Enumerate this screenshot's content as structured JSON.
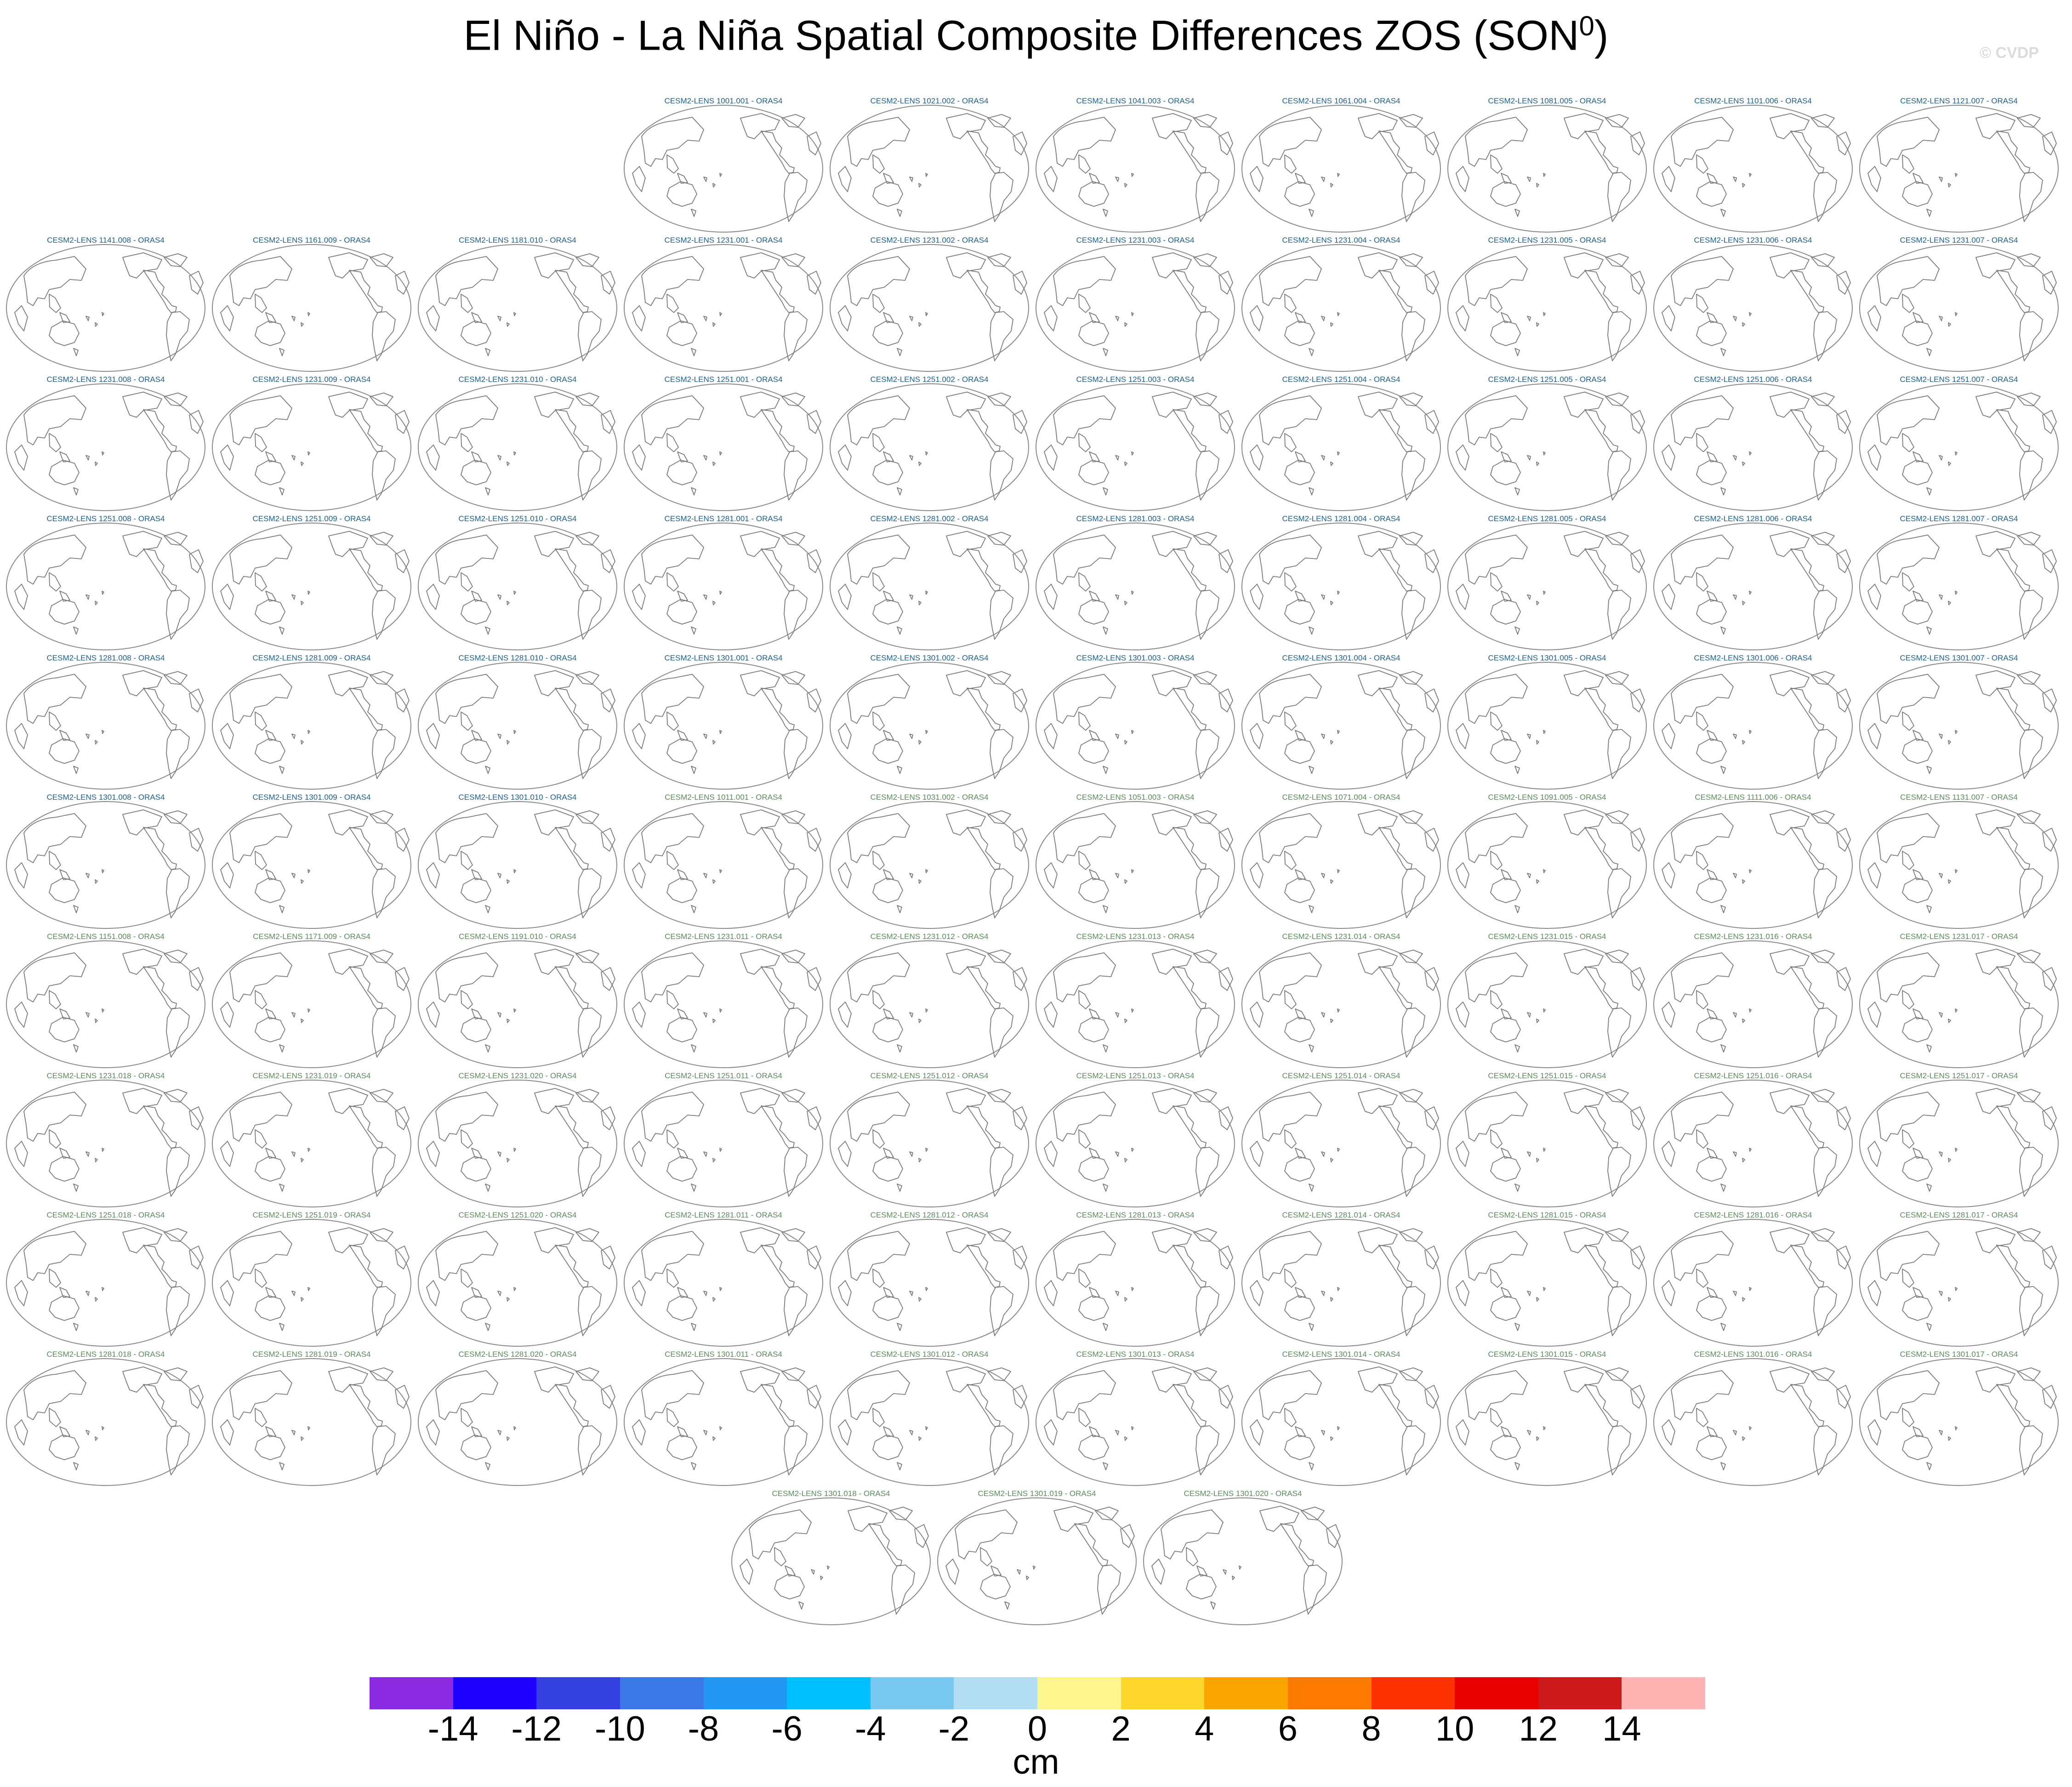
{
  "title": {
    "main": "El Niño - La Niña Spatial Composite Differences ZOS (SON",
    "superscript": "0",
    "closing": ")"
  },
  "watermark": "© CVDP",
  "panel_colors": {
    "group_a": "#1f5f8a",
    "group_b": "#5d8a5d"
  },
  "panel_rows": [
    {
      "panels": [
        {
          "label": "CESM2-LENS 1001.001 - ORAS4",
          "group": "a"
        },
        {
          "label": "CESM2-LENS 1021.002 - ORAS4",
          "group": "a"
        },
        {
          "label": "CESM2-LENS 1041.003 - ORAS4",
          "group": "a"
        },
        {
          "label": "CESM2-LENS 1061.004 - ORAS4",
          "group": "a"
        },
        {
          "label": "CESM2-LENS 1081.005 - ORAS4",
          "group": "a"
        },
        {
          "label": "CESM2-LENS 1101.006 - ORAS4",
          "group": "a"
        },
        {
          "label": "CESM2-LENS 1121.007 - ORAS4",
          "group": "a"
        }
      ]
    },
    {
      "panels": [
        {
          "label": "CESM2-LENS 1141.008 - ORAS4",
          "group": "a"
        },
        {
          "label": "CESM2-LENS 1161.009 - ORAS4",
          "group": "a"
        },
        {
          "label": "CESM2-LENS 1181.010 - ORAS4",
          "group": "a"
        },
        {
          "label": "CESM2-LENS 1231.001 - ORAS4",
          "group": "a"
        },
        {
          "label": "CESM2-LENS 1231.002 - ORAS4",
          "group": "a"
        },
        {
          "label": "CESM2-LENS 1231.003 - ORAS4",
          "group": "a"
        },
        {
          "label": "CESM2-LENS 1231.004 - ORAS4",
          "group": "a"
        },
        {
          "label": "CESM2-LENS 1231.005 - ORAS4",
          "group": "a"
        },
        {
          "label": "CESM2-LENS 1231.006 - ORAS4",
          "group": "a"
        },
        {
          "label": "CESM2-LENS 1231.007 - ORAS4",
          "group": "a"
        }
      ]
    },
    {
      "panels": [
        {
          "label": "CESM2-LENS 1231.008 - ORAS4",
          "group": "a"
        },
        {
          "label": "CESM2-LENS 1231.009 - ORAS4",
          "group": "a"
        },
        {
          "label": "CESM2-LENS 1231.010 - ORAS4",
          "group": "a"
        },
        {
          "label": "CESM2-LENS 1251.001 - ORAS4",
          "group": "a"
        },
        {
          "label": "CESM2-LENS 1251.002 - ORAS4",
          "group": "a"
        },
        {
          "label": "CESM2-LENS 1251.003 - ORAS4",
          "group": "a"
        },
        {
          "label": "CESM2-LENS 1251.004 - ORAS4",
          "group": "a"
        },
        {
          "label": "CESM2-LENS 1251.005 - ORAS4",
          "group": "a"
        },
        {
          "label": "CESM2-LENS 1251.006 - ORAS4",
          "group": "a"
        },
        {
          "label": "CESM2-LENS 1251.007 - ORAS4",
          "group": "a"
        }
      ]
    },
    {
      "panels": [
        {
          "label": "CESM2-LENS 1251.008 - ORAS4",
          "group": "a"
        },
        {
          "label": "CESM2-LENS 1251.009 - ORAS4",
          "group": "a"
        },
        {
          "label": "CESM2-LENS 1251.010 - ORAS4",
          "group": "a"
        },
        {
          "label": "CESM2-LENS 1281.001 - ORAS4",
          "group": "a"
        },
        {
          "label": "CESM2-LENS 1281.002 - ORAS4",
          "group": "a"
        },
        {
          "label": "CESM2-LENS 1281.003 - ORAS4",
          "group": "a"
        },
        {
          "label": "CESM2-LENS 1281.004 - ORAS4",
          "group": "a"
        },
        {
          "label": "CESM2-LENS 1281.005 - ORAS4",
          "group": "a"
        },
        {
          "label": "CESM2-LENS 1281.006 - ORAS4",
          "group": "a"
        },
        {
          "label": "CESM2-LENS 1281.007 - ORAS4",
          "group": "a"
        }
      ]
    },
    {
      "panels": [
        {
          "label": "CESM2-LENS 1281.008 - ORAS4",
          "group": "a"
        },
        {
          "label": "CESM2-LENS 1281.009 - ORAS4",
          "group": "a"
        },
        {
          "label": "CESM2-LENS 1281.010 - ORAS4",
          "group": "a"
        },
        {
          "label": "CESM2-LENS 1301.001 - ORAS4",
          "group": "a"
        },
        {
          "label": "CESM2-LENS 1301.002 - ORAS4",
          "group": "a"
        },
        {
          "label": "CESM2-LENS 1301.003 - ORAS4",
          "group": "a"
        },
        {
          "label": "CESM2-LENS 1301.004 - ORAS4",
          "group": "a"
        },
        {
          "label": "CESM2-LENS 1301.005 - ORAS4",
          "group": "a"
        },
        {
          "label": "CESM2-LENS 1301.006 - ORAS4",
          "group": "a"
        },
        {
          "label": "CESM2-LENS 1301.007 - ORAS4",
          "group": "a"
        }
      ]
    },
    {
      "panels": [
        {
          "label": "CESM2-LENS 1301.008 - ORAS4",
          "group": "a"
        },
        {
          "label": "CESM2-LENS 1301.009 - ORAS4",
          "group": "a"
        },
        {
          "label": "CESM2-LENS 1301.010 - ORAS4",
          "group": "a"
        },
        {
          "label": "CESM2-LENS 1011.001 - ORAS4",
          "group": "b"
        },
        {
          "label": "CESM2-LENS 1031.002 - ORAS4",
          "group": "b"
        },
        {
          "label": "CESM2-LENS 1051.003 - ORAS4",
          "group": "b"
        },
        {
          "label": "CESM2-LENS 1071.004 - ORAS4",
          "group": "b"
        },
        {
          "label": "CESM2-LENS 1091.005 - ORAS4",
          "group": "b"
        },
        {
          "label": "CESM2-LENS 1111.006 - ORAS4",
          "group": "b"
        },
        {
          "label": "CESM2-LENS 1131.007 - ORAS4",
          "group": "b"
        }
      ]
    },
    {
      "panels": [
        {
          "label": "CESM2-LENS 1151.008 - ORAS4",
          "group": "b"
        },
        {
          "label": "CESM2-LENS 1171.009 - ORAS4",
          "group": "b"
        },
        {
          "label": "CESM2-LENS 1191.010 - ORAS4",
          "group": "b"
        },
        {
          "label": "CESM2-LENS 1231.011 - ORAS4",
          "group": "b"
        },
        {
          "label": "CESM2-LENS 1231.012 - ORAS4",
          "group": "b"
        },
        {
          "label": "CESM2-LENS 1231.013 - ORAS4",
          "group": "b"
        },
        {
          "label": "CESM2-LENS 1231.014 - ORAS4",
          "group": "b"
        },
        {
          "label": "CESM2-LENS 1231.015 - ORAS4",
          "group": "b"
        },
        {
          "label": "CESM2-LENS 1231.016 - ORAS4",
          "group": "b"
        },
        {
          "label": "CESM2-LENS 1231.017 - ORAS4",
          "group": "b"
        }
      ]
    },
    {
      "panels": [
        {
          "label": "CESM2-LENS 1231.018 - ORAS4",
          "group": "b"
        },
        {
          "label": "CESM2-LENS 1231.019 - ORAS4",
          "group": "b"
        },
        {
          "label": "CESM2-LENS 1231.020 - ORAS4",
          "group": "b"
        },
        {
          "label": "CESM2-LENS 1251.011 - ORAS4",
          "group": "b"
        },
        {
          "label": "CESM2-LENS 1251.012 - ORAS4",
          "group": "b"
        },
        {
          "label": "CESM2-LENS 1251.013 - ORAS4",
          "group": "b"
        },
        {
          "label": "CESM2-LENS 1251.014 - ORAS4",
          "group": "b"
        },
        {
          "label": "CESM2-LENS 1251.015 - ORAS4",
          "group": "b"
        },
        {
          "label": "CESM2-LENS 1251.016 - ORAS4",
          "group": "b"
        },
        {
          "label": "CESM2-LENS 1251.017 - ORAS4",
          "group": "b"
        }
      ]
    },
    {
      "panels": [
        {
          "label": "CESM2-LENS 1251.018 - ORAS4",
          "group": "b"
        },
        {
          "label": "CESM2-LENS 1251.019 - ORAS4",
          "group": "b"
        },
        {
          "label": "CESM2-LENS 1251.020 - ORAS4",
          "group": "b"
        },
        {
          "label": "CESM2-LENS 1281.011 - ORAS4",
          "group": "b"
        },
        {
          "label": "CESM2-LENS 1281.012 - ORAS4",
          "group": "b"
        },
        {
          "label": "CESM2-LENS 1281.013 - ORAS4",
          "group": "b"
        },
        {
          "label": "CESM2-LENS 1281.014 - ORAS4",
          "group": "b"
        },
        {
          "label": "CESM2-LENS 1281.015 - ORAS4",
          "group": "b"
        },
        {
          "label": "CESM2-LENS 1281.016 - ORAS4",
          "group": "b"
        },
        {
          "label": "CESM2-LENS 1281.017 - ORAS4",
          "group": "b"
        }
      ]
    },
    {
      "panels": [
        {
          "label": "CESM2-LENS 1281.018 - ORAS4",
          "group": "b"
        },
        {
          "label": "CESM2-LENS 1281.019 - ORAS4",
          "group": "b"
        },
        {
          "label": "CESM2-LENS 1281.020 - ORAS4",
          "group": "b"
        },
        {
          "label": "CESM2-LENS 1301.011 - ORAS4",
          "group": "b"
        },
        {
          "label": "CESM2-LENS 1301.012 - ORAS4",
          "group": "b"
        },
        {
          "label": "CESM2-LENS 1301.013 - ORAS4",
          "group": "b"
        },
        {
          "label": "CESM2-LENS 1301.014 - ORAS4",
          "group": "b"
        },
        {
          "label": "CESM2-LENS 1301.015 - ORAS4",
          "group": "b"
        },
        {
          "label": "CESM2-LENS 1301.016 - ORAS4",
          "group": "b"
        },
        {
          "label": "CESM2-LENS 1301.017 - ORAS4",
          "group": "b"
        }
      ]
    },
    {
      "panels": [
        {
          "label": "CESM2-LENS 1301.018 - ORAS4",
          "group": "b"
        },
        {
          "label": "CESM2-LENS 1301.019 - ORAS4",
          "group": "b"
        },
        {
          "label": "CESM2-LENS 1301.020 - ORAS4",
          "group": "b"
        }
      ]
    }
  ],
  "colorbar": {
    "units": "cm",
    "labels": [
      "-14",
      "-12",
      "-10",
      "-8",
      "-6",
      "-4",
      "-2",
      "0",
      "2",
      "4",
      "6",
      "8",
      "10",
      "12",
      "14"
    ],
    "colors": [
      "#8a2be2",
      "#1e00ff",
      "#3440e0",
      "#3a78e6",
      "#2196f3",
      "#00bfff",
      "#78c8f0",
      "#b3ddf2",
      "#fff68f",
      "#fcd62a",
      "#f9a600",
      "#fc7a00",
      "#fb3200",
      "#e60000",
      "#cc1a1a",
      "#ffb3b3"
    ]
  }
}
